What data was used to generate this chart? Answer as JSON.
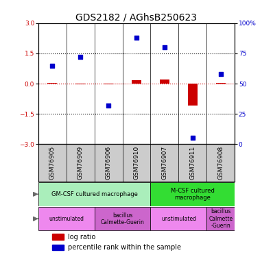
{
  "title": "GDS2182 / AGhsB250623",
  "samples": [
    "GSM76905",
    "GSM76909",
    "GSM76906",
    "GSM76910",
    "GSM76907",
    "GSM76911",
    "GSM76908"
  ],
  "log_ratio": [
    0.02,
    -0.05,
    -0.05,
    0.18,
    0.22,
    -1.1,
    0.02
  ],
  "percentile_rank": [
    65,
    72,
    32,
    88,
    80,
    5,
    58
  ],
  "cell_type_groups": [
    {
      "label": "GM-CSF cultured macrophage",
      "start": 0,
      "end": 4,
      "color": "#aaeebb"
    },
    {
      "label": "M-CSF cultured\nmacrophage",
      "start": 4,
      "end": 7,
      "color": "#33dd33"
    }
  ],
  "agent_groups": [
    {
      "label": "unstimulated",
      "start": 0,
      "end": 2,
      "color": "#ee88ee"
    },
    {
      "label": "bacillus\nCalmette-Guerin",
      "start": 2,
      "end": 4,
      "color": "#cc66cc"
    },
    {
      "label": "unstimulated",
      "start": 4,
      "end": 6,
      "color": "#ee88ee"
    },
    {
      "label": "bacillus\nCalmette\n-Guerin",
      "start": 6,
      "end": 7,
      "color": "#cc66cc"
    }
  ],
  "ylim_left": [
    -3,
    3
  ],
  "ylim_right": [
    0,
    100
  ],
  "yticks_left": [
    -3,
    -1.5,
    0,
    1.5,
    3
  ],
  "yticks_right": [
    0,
    25,
    50,
    75,
    100
  ],
  "hlines": [
    1.5,
    -1.5,
    0
  ],
  "log_ratio_color": "#cc0000",
  "percentile_color": "#0000cc",
  "bar_width": 0.35,
  "title_fontsize": 10,
  "tick_fontsize": 6.5,
  "label_fontsize": 7,
  "sample_bg_color": "#cccccc",
  "cell_type_light_green": "#aaeebb",
  "cell_type_dark_green": "#33dd33"
}
